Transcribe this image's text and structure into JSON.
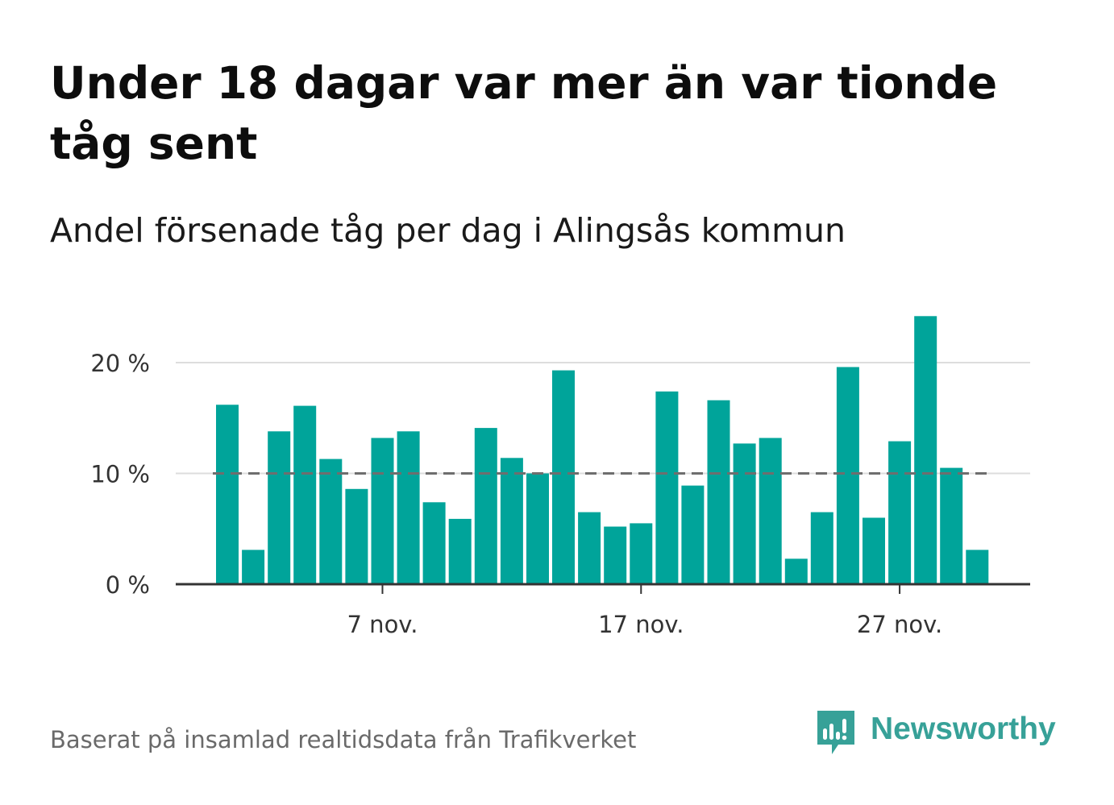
{
  "header": {
    "title": "Under 18 dagar var mer än var tionde tåg sent",
    "subtitle": "Andel försenade tåg per dag i Alingsås kommun"
  },
  "footer": {
    "source": "Baserat på insamlad realtidsdata från Trafikverket",
    "brand": "Newsworthy"
  },
  "colors": {
    "bar": "#00a49a",
    "reference_line": "#6e6e6e",
    "grid": "#dddddd",
    "axis": "#333333",
    "brand": "#37a198"
  },
  "icons": {
    "brand_logo": "bar-chart-speech-bubble-icon"
  },
  "chart_data": {
    "type": "bar",
    "x": [
      "2024-11-01",
      "2024-11-02",
      "2024-11-03",
      "2024-11-04",
      "2024-11-05",
      "2024-11-06",
      "2024-11-07",
      "2024-11-08",
      "2024-11-09",
      "2024-11-10",
      "2024-11-11",
      "2024-11-12",
      "2024-11-13",
      "2024-11-14",
      "2024-11-15",
      "2024-11-16",
      "2024-11-17",
      "2024-11-18",
      "2024-11-19",
      "2024-11-20",
      "2024-11-21",
      "2024-11-22",
      "2024-11-23",
      "2024-11-24",
      "2024-11-25",
      "2024-11-26",
      "2024-11-27",
      "2024-11-28",
      "2024-11-29",
      "2024-11-30"
    ],
    "values": [
      16.2,
      3.1,
      13.8,
      16.1,
      11.3,
      8.6,
      13.2,
      13.8,
      7.4,
      5.9,
      14.1,
      11.4,
      10.0,
      19.3,
      6.5,
      5.2,
      5.5,
      17.4,
      8.9,
      16.6,
      12.7,
      13.2,
      2.3,
      6.5,
      19.6,
      6.0,
      12.9,
      24.2,
      10.5,
      3.1
    ],
    "reference_line": 10,
    "ylim": [
      0,
      25
    ],
    "yticks": [
      0,
      10,
      20
    ],
    "ytick_labels": [
      "0 %",
      "10 %",
      "20 %"
    ],
    "xticks": [
      "7 nov.",
      "17 nov.",
      "27 nov."
    ],
    "xlabel": "",
    "ylabel": "",
    "grid": true,
    "legend": "none"
  }
}
